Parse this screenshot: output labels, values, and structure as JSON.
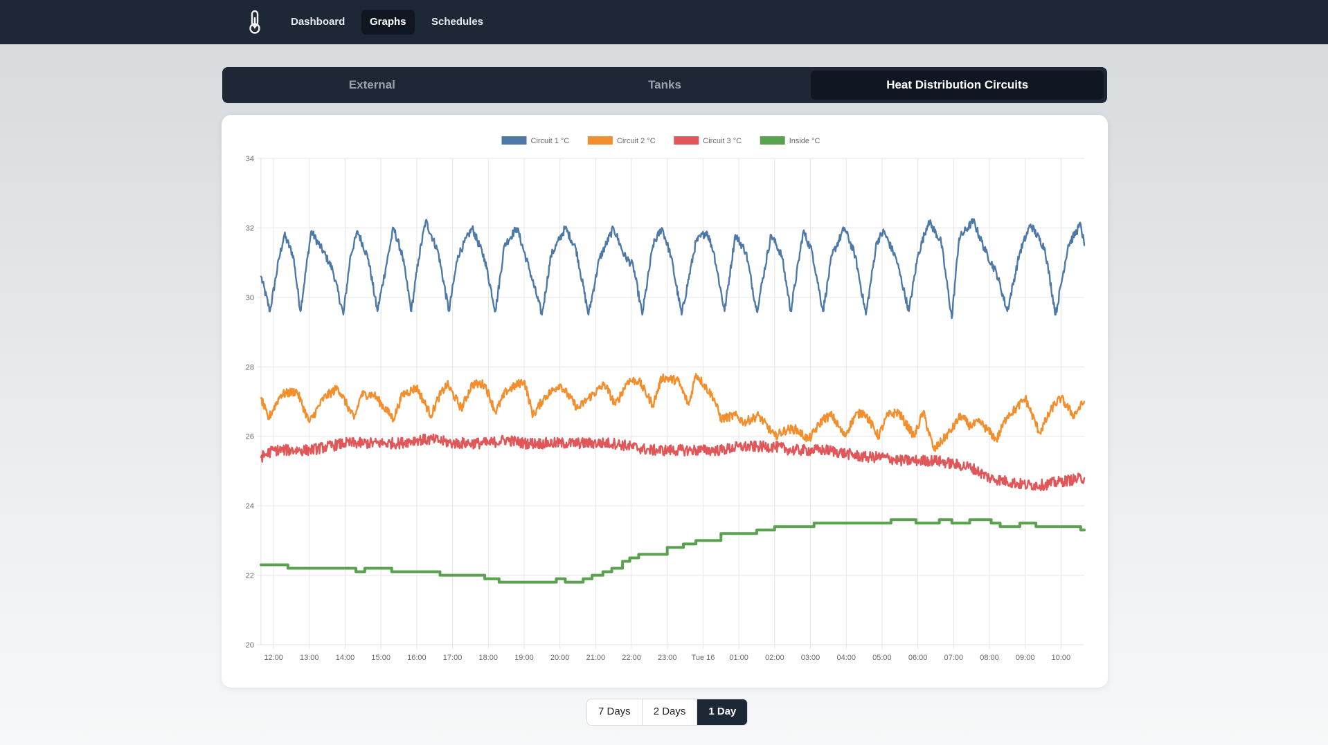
{
  "nav": {
    "logo_icon": "thermometer-icon",
    "items": [
      {
        "label": "Dashboard",
        "active": false
      },
      {
        "label": "Graphs",
        "active": true
      },
      {
        "label": "Schedules",
        "active": false
      }
    ]
  },
  "tabs": [
    {
      "label": "External",
      "active": false
    },
    {
      "label": "Tanks",
      "active": false
    },
    {
      "label": "Heat Distribution Circuits",
      "active": true
    }
  ],
  "range_buttons": [
    {
      "label": "7 Days",
      "active": false
    },
    {
      "label": "2 Days",
      "active": false
    },
    {
      "label": "1 Day",
      "active": true
    }
  ],
  "chart_data": {
    "type": "line",
    "title": "",
    "xlabel": "",
    "ylabel": "",
    "ylim": [
      20,
      34
    ],
    "y_ticks": [
      20,
      22,
      24,
      26,
      28,
      30,
      32,
      34
    ],
    "x_range": [
      11.65,
      34.65
    ],
    "x_ticks": [
      {
        "value": 12,
        "label": "12:00"
      },
      {
        "value": 13,
        "label": "13:00"
      },
      {
        "value": 14,
        "label": "14:00"
      },
      {
        "value": 15,
        "label": "15:00"
      },
      {
        "value": 16,
        "label": "16:00"
      },
      {
        "value": 17,
        "label": "17:00"
      },
      {
        "value": 18,
        "label": "18:00"
      },
      {
        "value": 19,
        "label": "19:00"
      },
      {
        "value": 20,
        "label": "20:00"
      },
      {
        "value": 21,
        "label": "21:00"
      },
      {
        "value": 22,
        "label": "22:00"
      },
      {
        "value": 23,
        "label": "23:00"
      },
      {
        "value": 24,
        "label": "Tue 16"
      },
      {
        "value": 25,
        "label": "01:00"
      },
      {
        "value": 26,
        "label": "02:00"
      },
      {
        "value": 27,
        "label": "03:00"
      },
      {
        "value": 28,
        "label": "04:00"
      },
      {
        "value": 29,
        "label": "05:00"
      },
      {
        "value": 30,
        "label": "06:00"
      },
      {
        "value": 31,
        "label": "07:00"
      },
      {
        "value": 32,
        "label": "08:00"
      },
      {
        "value": 33,
        "label": "09:00"
      },
      {
        "value": 34,
        "label": "10:00"
      }
    ],
    "grid": true,
    "legend_position": "top-center",
    "series": [
      {
        "name": "Circuit 1 °C",
        "color": "#4e79a7",
        "x": [
          11.65,
          11.9,
          12.15,
          12.3,
          12.55,
          12.75,
          13.05,
          13.4,
          13.65,
          13.95,
          14.15,
          14.35,
          14.65,
          14.9,
          15.35,
          15.6,
          15.85,
          16.05,
          16.25,
          16.6,
          16.9,
          17.15,
          17.55,
          17.9,
          18.2,
          18.45,
          18.8,
          19.15,
          19.5,
          19.75,
          20.15,
          20.45,
          20.8,
          21.1,
          21.5,
          21.8,
          22.05,
          22.3,
          22.6,
          22.85,
          23.1,
          23.4,
          23.8,
          24.1,
          24.3,
          24.6,
          24.9,
          25.2,
          25.5,
          25.9,
          26.2,
          26.45,
          26.8,
          27.05,
          27.35,
          27.6,
          27.95,
          28.25,
          28.55,
          28.85,
          29.05,
          29.4,
          29.75,
          30.0,
          30.3,
          30.65,
          30.95,
          31.15,
          31.55,
          31.9,
          32.2,
          32.5,
          32.85,
          33.15,
          33.55,
          33.85,
          34.2,
          34.55,
          34.65
        ],
        "values": [
          30.6,
          29.6,
          31.1,
          31.8,
          31.2,
          29.6,
          31.9,
          31.3,
          30.8,
          29.5,
          31.2,
          31.9,
          31.1,
          29.6,
          32.0,
          31.2,
          29.6,
          31.1,
          32.2,
          31.3,
          29.6,
          31.2,
          32.0,
          31.1,
          29.6,
          31.5,
          32.0,
          30.8,
          29.5,
          31.2,
          32.0,
          31.4,
          29.5,
          31.1,
          32.0,
          31.2,
          30.9,
          29.5,
          31.5,
          32.0,
          31.2,
          29.5,
          31.6,
          31.9,
          31.3,
          29.6,
          31.8,
          31.3,
          29.6,
          31.8,
          31.2,
          29.6,
          31.9,
          31.3,
          29.6,
          31.2,
          32.0,
          31.2,
          29.5,
          31.6,
          31.9,
          31.1,
          29.6,
          31.2,
          32.2,
          31.6,
          29.4,
          31.7,
          32.2,
          31.3,
          30.7,
          29.6,
          31.3,
          32.1,
          31.4,
          29.5,
          31.5,
          32.1,
          31.5
        ]
      },
      {
        "name": "Circuit 2 °C",
        "color": "#f28e2b",
        "x": [
          11.65,
          11.85,
          12.2,
          12.65,
          13.0,
          13.4,
          13.8,
          14.25,
          14.45,
          14.8,
          15.35,
          15.6,
          16.0,
          16.4,
          16.6,
          16.85,
          17.25,
          17.55,
          17.9,
          18.2,
          18.5,
          19.0,
          19.25,
          19.55,
          20.0,
          20.5,
          20.8,
          21.25,
          21.55,
          21.9,
          22.2,
          22.6,
          22.85,
          23.3,
          23.6,
          23.8,
          24.3,
          24.5,
          24.9,
          25.15,
          25.55,
          26.0,
          26.35,
          26.6,
          26.95,
          27.35,
          27.6,
          27.95,
          28.25,
          28.5,
          28.9,
          29.15,
          29.45,
          29.9,
          30.15,
          30.45,
          30.95,
          31.2,
          31.45,
          31.75,
          32.2,
          32.5,
          32.75,
          33.0,
          33.4,
          33.8,
          34.0,
          34.35,
          34.65
        ],
        "values": [
          27.1,
          26.5,
          27.2,
          27.3,
          26.4,
          27.1,
          27.4,
          26.5,
          27.2,
          27.2,
          26.5,
          27.2,
          27.4,
          26.6,
          27.1,
          27.5,
          26.8,
          27.5,
          27.5,
          26.7,
          27.3,
          27.6,
          26.6,
          27.1,
          27.5,
          26.8,
          27.1,
          27.5,
          26.9,
          27.6,
          27.6,
          26.9,
          27.7,
          27.6,
          26.9,
          27.8,
          27.1,
          26.5,
          26.6,
          26.4,
          26.6,
          26.0,
          26.2,
          26.2,
          25.9,
          26.5,
          26.6,
          26.0,
          26.6,
          26.7,
          26.0,
          26.6,
          26.7,
          26.0,
          26.7,
          25.6,
          26.2,
          26.6,
          26.3,
          26.4,
          25.9,
          26.6,
          26.8,
          27.1,
          26.1,
          26.9,
          27.1,
          26.6,
          27.0
        ]
      },
      {
        "name": "Circuit 3 °C",
        "color": "#e15759",
        "x": [
          11.65,
          12.0,
          12.5,
          13.0,
          13.5,
          14.0,
          14.5,
          15.0,
          15.5,
          16.0,
          16.5,
          17.0,
          17.5,
          18.0,
          18.5,
          19.0,
          19.5,
          20.0,
          20.5,
          21.0,
          21.5,
          22.0,
          22.5,
          23.0,
          23.5,
          24.0,
          24.5,
          25.0,
          25.5,
          26.0,
          26.5,
          27.0,
          27.5,
          28.0,
          28.5,
          29.0,
          29.5,
          30.0,
          30.5,
          31.0,
          31.5,
          32.0,
          32.5,
          33.0,
          33.5,
          34.0,
          34.65
        ],
        "values": [
          25.4,
          25.6,
          25.6,
          25.6,
          25.7,
          25.8,
          25.8,
          25.8,
          25.8,
          25.9,
          25.9,
          25.8,
          25.8,
          25.8,
          25.9,
          25.8,
          25.8,
          25.8,
          25.8,
          25.8,
          25.8,
          25.7,
          25.6,
          25.6,
          25.6,
          25.6,
          25.6,
          25.7,
          25.7,
          25.7,
          25.6,
          25.6,
          25.6,
          25.5,
          25.4,
          25.4,
          25.3,
          25.3,
          25.3,
          25.2,
          25.1,
          24.8,
          24.7,
          24.6,
          24.6,
          24.7,
          24.8
        ]
      },
      {
        "name": "Inside °C",
        "color": "#59a14f",
        "x": [
          11.65,
          12.4,
          12.4,
          14.3,
          14.3,
          14.55,
          14.55,
          15.3,
          15.3,
          16.65,
          16.65,
          17.9,
          17.9,
          18.3,
          18.3,
          19.9,
          19.9,
          20.15,
          20.15,
          20.65,
          20.65,
          20.9,
          20.9,
          21.2,
          21.2,
          21.45,
          21.45,
          21.75,
          21.75,
          21.95,
          21.95,
          22.2,
          22.2,
          23.0,
          23.0,
          23.45,
          23.45,
          23.8,
          23.8,
          24.5,
          24.5,
          25.25,
          25.25,
          25.5,
          25.5,
          26.0,
          26.0,
          27.1,
          27.1,
          28.15,
          28.15,
          29.25,
          29.25,
          29.95,
          29.95,
          30.6,
          30.6,
          30.95,
          30.95,
          31.45,
          31.45,
          32.05,
          32.05,
          32.3,
          32.3,
          32.85,
          32.85,
          33.3,
          33.3,
          33.75,
          33.75,
          34.55,
          34.55,
          34.65
        ],
        "values": [
          22.3,
          22.3,
          22.2,
          22.2,
          22.1,
          22.1,
          22.2,
          22.2,
          22.1,
          22.1,
          22.0,
          22.0,
          21.9,
          21.9,
          21.8,
          21.8,
          21.9,
          21.9,
          21.8,
          21.8,
          21.9,
          21.9,
          22.0,
          22.0,
          22.1,
          22.1,
          22.2,
          22.2,
          22.4,
          22.4,
          22.5,
          22.5,
          22.6,
          22.6,
          22.8,
          22.8,
          22.9,
          22.9,
          23.0,
          23.0,
          23.2,
          23.2,
          23.2,
          23.2,
          23.3,
          23.3,
          23.4,
          23.4,
          23.5,
          23.5,
          23.5,
          23.5,
          23.6,
          23.6,
          23.5,
          23.5,
          23.6,
          23.6,
          23.5,
          23.5,
          23.6,
          23.6,
          23.5,
          23.5,
          23.4,
          23.4,
          23.5,
          23.5,
          23.4,
          23.4,
          23.4,
          23.4,
          23.3,
          23.3
        ]
      }
    ]
  }
}
